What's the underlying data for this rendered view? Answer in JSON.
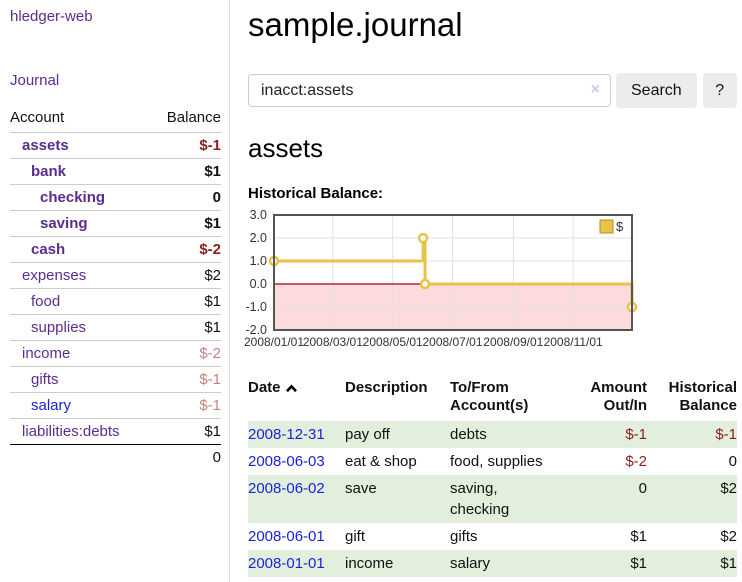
{
  "app": {
    "title": "hledger-web",
    "nav_journal": "Journal"
  },
  "sidebar": {
    "accounts_header": {
      "account": "Account",
      "balance": "Balance"
    },
    "accounts": [
      {
        "name": "assets",
        "level": 0,
        "bold": true,
        "blue": false,
        "balance": "$-1",
        "tone": "neg"
      },
      {
        "name": "bank",
        "level": 1,
        "bold": true,
        "blue": false,
        "balance": "$1",
        "tone": "pos"
      },
      {
        "name": "checking",
        "level": 2,
        "bold": true,
        "blue": false,
        "balance": "0",
        "tone": "pos"
      },
      {
        "name": "saving",
        "level": 2,
        "bold": true,
        "blue": false,
        "balance": "$1",
        "tone": "pos"
      },
      {
        "name": "cash",
        "level": 1,
        "bold": true,
        "blue": false,
        "balance": "$-2",
        "tone": "neg"
      },
      {
        "name": "expenses",
        "level": 0,
        "bold": false,
        "blue": false,
        "balance": "$2",
        "tone": "pos"
      },
      {
        "name": "food",
        "level": 1,
        "bold": false,
        "blue": false,
        "balance": "$1",
        "tone": "pos"
      },
      {
        "name": "supplies",
        "level": 1,
        "bold": false,
        "blue": false,
        "balance": "$1",
        "tone": "pos"
      },
      {
        "name": "income",
        "level": 0,
        "bold": false,
        "blue": false,
        "balance": "$-2",
        "tone": "negsoft"
      },
      {
        "name": "gifts",
        "level": 1,
        "bold": false,
        "blue": false,
        "balance": "$-1",
        "tone": "negsoft"
      },
      {
        "name": "salary",
        "level": 1,
        "bold": false,
        "blue": true,
        "balance": "$-1",
        "tone": "negsoft"
      },
      {
        "name": "liabilities:debts",
        "level": 0,
        "bold": false,
        "blue": false,
        "balance": "$1",
        "tone": "pos"
      }
    ],
    "total": "0"
  },
  "header": {
    "title": "sample.journal"
  },
  "search": {
    "value": "inacct:assets",
    "clear_icon": "×",
    "button_label": "Search",
    "help_label": "?"
  },
  "account_page": {
    "heading": "assets",
    "chart_title": "Historical Balance:"
  },
  "chart_data": {
    "type": "line",
    "step": true,
    "title": "Historical Balance:",
    "series": [
      {
        "name": "$",
        "color": "#e9c24a",
        "points": [
          {
            "date": "2008-01-01",
            "day": 0,
            "value": 1
          },
          {
            "date": "2008-06-01",
            "day": 152,
            "value": 2
          },
          {
            "date": "2008-06-03",
            "day": 154,
            "value": 0
          },
          {
            "date": "2008-12-31",
            "day": 365,
            "value": -1
          }
        ]
      }
    ],
    "x_ticks": [
      {
        "label": "2008/01/01",
        "day": 0
      },
      {
        "label": "2008/03/01",
        "day": 60
      },
      {
        "label": "2008/05/01",
        "day": 121
      },
      {
        "label": "2008/07/01",
        "day": 182
      },
      {
        "label": "2008/09/01",
        "day": 244
      },
      {
        "label": "2008/11/01",
        "day": 305
      }
    ],
    "y_ticks": [
      "-2.0",
      "-1.0",
      "0.0",
      "1.0",
      "2.0",
      "3.0"
    ],
    "ylim": [
      -2,
      3
    ],
    "xlim_days": [
      0,
      365
    ],
    "grid": true,
    "negative_fill": "#fbdbdb",
    "zero_line_color": "#a40000",
    "grid_color": "#e2e2e2",
    "border_color": "#545454",
    "legend": {
      "label": "$",
      "swatch_color": "#e9c24a",
      "swatch_border": "#b08f28",
      "position": "top-right"
    }
  },
  "transactions": {
    "columns": [
      {
        "label": "Date",
        "sort": "asc"
      },
      {
        "label": "Description"
      },
      {
        "label": "To/From Account(s)"
      },
      {
        "label": "Amount Out/In"
      },
      {
        "label": "Historical Balance"
      }
    ],
    "rows": [
      {
        "date": "2008-12-31",
        "description": "pay off",
        "accounts": "debts",
        "amount": "$-1",
        "amount_neg": true,
        "balance": "$-1",
        "balance_neg": true
      },
      {
        "date": "2008-06-03",
        "description": "eat & shop",
        "accounts": "food, supplies",
        "amount": "$-2",
        "amount_neg": true,
        "balance": "0",
        "balance_neg": false
      },
      {
        "date": "2008-06-02",
        "description": "save",
        "accounts": "saving, checking",
        "amount": "0",
        "amount_neg": false,
        "balance": "$2",
        "balance_neg": false
      },
      {
        "date": "2008-06-01",
        "description": "gift",
        "accounts": "gifts",
        "amount": "$1",
        "amount_neg": false,
        "balance": "$2",
        "balance_neg": false
      },
      {
        "date": "2008-01-01",
        "description": "income",
        "accounts": "salary",
        "amount": "$1",
        "amount_neg": false,
        "balance": "$1",
        "balance_neg": false
      }
    ]
  }
}
